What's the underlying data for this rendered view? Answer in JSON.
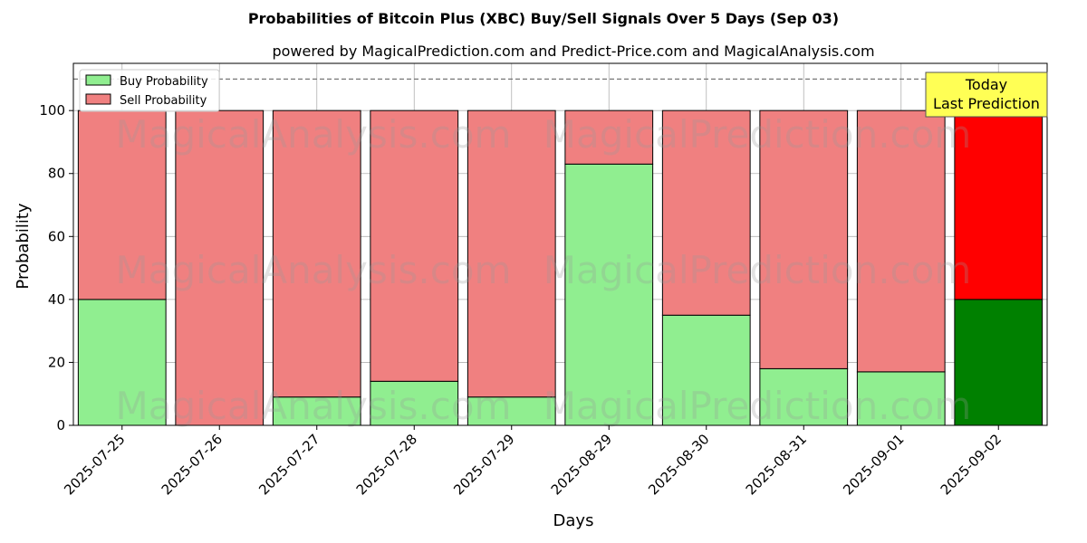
{
  "chart_data": {
    "type": "bar",
    "stacked": true,
    "title": "Probabilities of Bitcoin Plus (XBC) Buy/Sell Signals Over 5 Days (Sep 03)",
    "subtitle": "powered by MagicalPrediction.com and Predict-Price.com and MagicalAnalysis.com",
    "xlabel": "Days",
    "ylabel": "Probability",
    "ylim": [
      0,
      115
    ],
    "yticks": [
      0,
      20,
      40,
      60,
      80,
      100
    ],
    "grid": true,
    "legend_position": "top-left",
    "reference_line": 110,
    "categories": [
      "2025-07-25",
      "2025-07-26",
      "2025-07-27",
      "2025-07-28",
      "2025-07-29",
      "2025-08-29",
      "2025-08-30",
      "2025-08-31",
      "2025-09-01",
      "2025-09-02"
    ],
    "series": [
      {
        "name": "Buy Probability",
        "values": [
          40,
          0,
          9,
          14,
          9,
          83,
          35,
          18,
          17,
          40
        ]
      },
      {
        "name": "Sell Probability",
        "values": [
          60,
          100,
          91,
          86,
          91,
          17,
          65,
          82,
          83,
          60
        ]
      }
    ],
    "colors": {
      "buy": "#90ee90",
      "sell": "#f08080",
      "buy_highlight": "#008000",
      "sell_highlight": "#ff0000",
      "annotation_bg": "#ffff55"
    },
    "highlight_index": 9,
    "annotation": {
      "line1": "Today",
      "line2": "Last Prediction"
    },
    "watermarks": [
      "MagicalAnalysis.com",
      "MagicalPrediction.com"
    ]
  }
}
